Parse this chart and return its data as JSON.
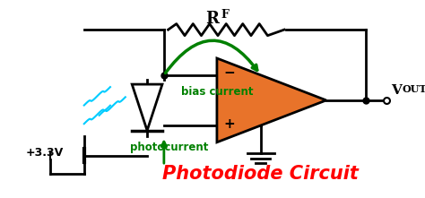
{
  "bg_color": "#ffffff",
  "title": "Photodiode Circuit",
  "title_color": "#ff0000",
  "title_fontsize": 15,
  "rf_label": "R",
  "rf_sub": "F",
  "vout_label": "V",
  "vout_sub": "OUT",
  "bias_label": "bias current",
  "photo_label": "photocurrent",
  "voltage_label": "+3.3V",
  "line_color": "#000000",
  "green_color": "#008000",
  "cyan_color": "#00ccff",
  "orange_color": "#e8732a",
  "fig_width": 4.74,
  "fig_height": 2.21,
  "dpi": 100
}
